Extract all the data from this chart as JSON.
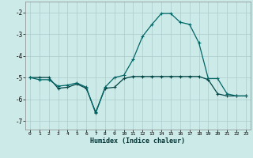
{
  "xlabel": "Humidex (Indice chaleur)",
  "background_color": "#cceae8",
  "grid_color": "#aacccc",
  "line_color_main": "#006666",
  "line_color_flat": "#004444",
  "xlim": [
    -0.5,
    23.5
  ],
  "ylim": [
    -7.4,
    -1.5
  ],
  "yticks": [
    -7,
    -6,
    -5,
    -4,
    -3,
    -2
  ],
  "xticks": [
    0,
    1,
    2,
    3,
    4,
    5,
    6,
    7,
    8,
    9,
    10,
    11,
    12,
    13,
    14,
    15,
    16,
    17,
    18,
    19,
    20,
    21,
    22,
    23
  ],
  "series1_x": [
    0,
    1,
    2,
    3,
    4,
    5,
    6,
    7,
    8,
    9,
    10,
    11,
    12,
    13,
    14,
    15,
    16,
    17,
    18,
    19,
    20,
    21,
    22,
    23
  ],
  "series1_y": [
    -5.0,
    -5.1,
    -5.1,
    -5.4,
    -5.35,
    -5.25,
    -5.45,
    -6.65,
    -5.45,
    -5.0,
    -4.9,
    -4.15,
    -3.1,
    -2.55,
    -2.05,
    -2.05,
    -2.45,
    -2.55,
    -3.4,
    -5.05,
    -5.05,
    -5.75,
    -5.85,
    -5.85
  ],
  "series2_x": [
    0,
    1,
    2,
    3,
    4,
    5,
    6,
    7,
    8,
    9,
    10,
    11,
    12,
    13,
    14,
    15,
    16,
    17,
    18,
    19,
    20,
    21,
    22,
    23
  ],
  "series2_y": [
    -5.0,
    -5.0,
    -5.0,
    -5.5,
    -5.45,
    -5.3,
    -5.5,
    -6.6,
    -5.5,
    -5.45,
    -5.05,
    -4.95,
    -4.95,
    -4.95,
    -4.95,
    -4.95,
    -4.95,
    -4.95,
    -4.95,
    -5.1,
    -5.75,
    -5.85,
    -5.85,
    -5.85
  ]
}
